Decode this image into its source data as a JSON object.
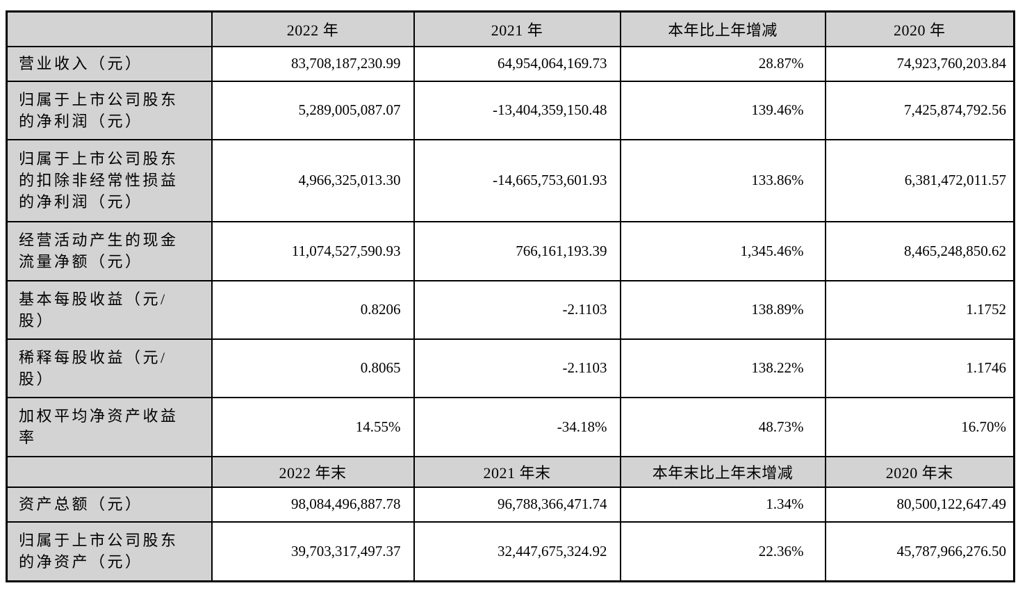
{
  "table": {
    "header_annual": {
      "corner": "",
      "y2022": "2022 年",
      "y2021": "2021 年",
      "change": "本年比上年增减",
      "y2020": "2020 年"
    },
    "rows_annual": [
      {
        "label": "营业收入（元）",
        "y2022": "83,708,187,230.99",
        "y2021": "64,954,064,169.73",
        "change": "28.87%",
        "y2020": "74,923,760,203.84"
      },
      {
        "label": "归属于上市公司股东\n的净利润（元）",
        "y2022": "5,289,005,087.07",
        "y2021": "-13,404,359,150.48",
        "change": "139.46%",
        "y2020": "7,425,874,792.56"
      },
      {
        "label": "归属于上市公司股东\n的扣除非经常性损益\n的净利润（元）",
        "y2022": "4,966,325,013.30",
        "y2021": "-14,665,753,601.93",
        "change": "133.86%",
        "y2020": "6,381,472,011.57"
      },
      {
        "label": "经营活动产生的现金\n流量净额（元）",
        "y2022": "11,074,527,590.93",
        "y2021": "766,161,193.39",
        "change": "1,345.46%",
        "y2020": "8,465,248,850.62"
      },
      {
        "label": "基本每股收益（元/\n股）",
        "y2022": "0.8206",
        "y2021": "-2.1103",
        "change": "138.89%",
        "y2020": "1.1752"
      },
      {
        "label": "稀释每股收益（元/\n股）",
        "y2022": "0.8065",
        "y2021": "-2.1103",
        "change": "138.22%",
        "y2020": "1.1746"
      },
      {
        "label": "加权平均净资产收益\n率",
        "y2022": "14.55%",
        "y2021": "-34.18%",
        "change": "48.73%",
        "y2020": "16.70%"
      }
    ],
    "header_eoy": {
      "corner": "",
      "y2022": "2022 年末",
      "y2021": "2021 年末",
      "change": "本年末比上年末增减",
      "y2020": "2020 年末"
    },
    "rows_eoy": [
      {
        "label": "资产总额（元）",
        "y2022": "98,084,496,887.78",
        "y2021": "96,788,366,471.74",
        "change": "1.34%",
        "y2020": "80,500,122,647.49"
      },
      {
        "label": "归属于上市公司股东\n的净资产（元）",
        "y2022": "39,703,317,497.37",
        "y2021": "32,447,675,324.92",
        "change": "22.36%",
        "y2020": "45,787,966,276.50"
      }
    ]
  },
  "colors": {
    "header_bg": "#d3d3d3",
    "border": "#000000",
    "text": "#000000"
  }
}
